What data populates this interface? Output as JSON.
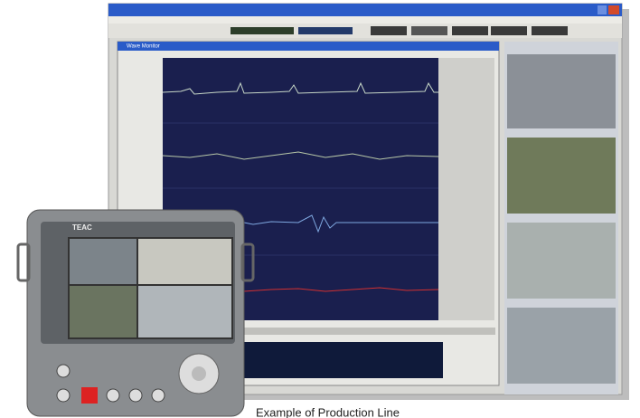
{
  "window": {
    "title": "Wave Monitor"
  },
  "device": {
    "brand": "TEAC"
  },
  "caption": "Example of Production Line"
}
